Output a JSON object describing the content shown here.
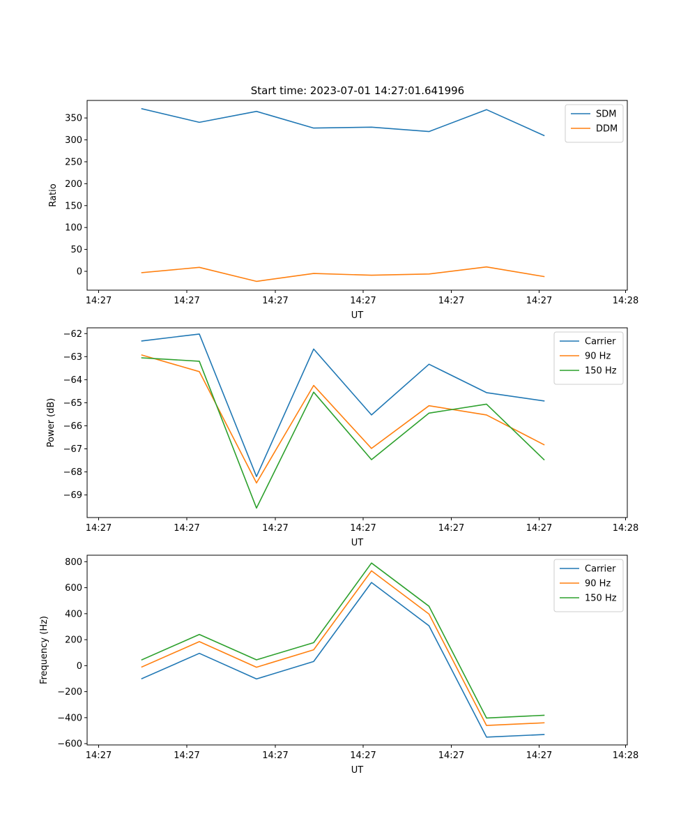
{
  "title": "Start time: 2023-07-01 14:27:01.641996",
  "colors": {
    "blue": "#1f77b4",
    "orange": "#ff7f0e",
    "green": "#2ca02c"
  },
  "chart_data": [
    {
      "type": "line",
      "xlabel": "UT",
      "ylabel": "Ratio",
      "x_tick_labels": [
        "14:27",
        "14:27",
        "14:27",
        "14:27",
        "14:27",
        "14:27",
        "14:28"
      ],
      "y_ticks": [
        0,
        50,
        100,
        150,
        200,
        250,
        300,
        350
      ],
      "y_tick_labels": [
        "0",
        "50",
        "100",
        "150",
        "200",
        "250",
        "300",
        "350"
      ],
      "ylim": [
        -43,
        390
      ],
      "legend_position": "top-right",
      "series": [
        {
          "name": "SDM",
          "color_key": "blue",
          "values": [
            371,
            340,
            365,
            327,
            329,
            319,
            369,
            310
          ]
        },
        {
          "name": "DDM",
          "color_key": "orange",
          "values": [
            -3,
            9,
            -23,
            -5,
            -9,
            -6,
            10,
            -12
          ]
        }
      ]
    },
    {
      "type": "line",
      "xlabel": "UT",
      "ylabel": "Power (dB)",
      "x_tick_labels": [
        "14:27",
        "14:27",
        "14:27",
        "14:27",
        "14:27",
        "14:27",
        "14:28"
      ],
      "y_ticks": [
        -69,
        -68,
        -67,
        -66,
        -65,
        -64,
        -63,
        -62
      ],
      "y_tick_labels": [
        "−69",
        "−68",
        "−67",
        "−66",
        "−65",
        "−64",
        "−63",
        "−62"
      ],
      "ylim": [
        -69.98,
        -61.75
      ],
      "legend_position": "top-right",
      "series": [
        {
          "name": "Carrier",
          "color_key": "blue",
          "values": [
            -62.32,
            -62.02,
            -68.2,
            -62.67,
            -65.53,
            -63.33,
            -64.56,
            -64.92
          ]
        },
        {
          "name": "90 Hz",
          "color_key": "orange",
          "values": [
            -62.93,
            -63.65,
            -68.48,
            -64.25,
            -66.98,
            -65.13,
            -65.53,
            -66.82
          ]
        },
        {
          "name": "150 Hz",
          "color_key": "green",
          "values": [
            -63.05,
            -63.2,
            -69.57,
            -64.54,
            -67.47,
            -65.45,
            -65.06,
            -67.47
          ]
        }
      ]
    },
    {
      "type": "line",
      "xlabel": "UT",
      "ylabel": "Frequency (Hz)",
      "x_tick_labels": [
        "14:27",
        "14:27",
        "14:27",
        "14:27",
        "14:27",
        "14:27",
        "14:28"
      ],
      "y_ticks": [
        -600,
        -400,
        -200,
        0,
        200,
        400,
        600,
        800
      ],
      "y_tick_labels": [
        "−600",
        "−400",
        "−200",
        "0",
        "200",
        "400",
        "600",
        "800"
      ],
      "ylim": [
        -610,
        850
      ],
      "legend_position": "top-right",
      "series": [
        {
          "name": "Carrier",
          "color_key": "blue",
          "values": [
            -100,
            95,
            -102,
            32,
            640,
            307,
            -550,
            -530
          ]
        },
        {
          "name": "90 Hz",
          "color_key": "orange",
          "values": [
            -10,
            185,
            -12,
            122,
            730,
            397,
            -460,
            -440
          ]
        },
        {
          "name": "150 Hz",
          "color_key": "green",
          "values": [
            45,
            240,
            45,
            177,
            790,
            457,
            -403,
            -382
          ]
        }
      ]
    }
  ]
}
